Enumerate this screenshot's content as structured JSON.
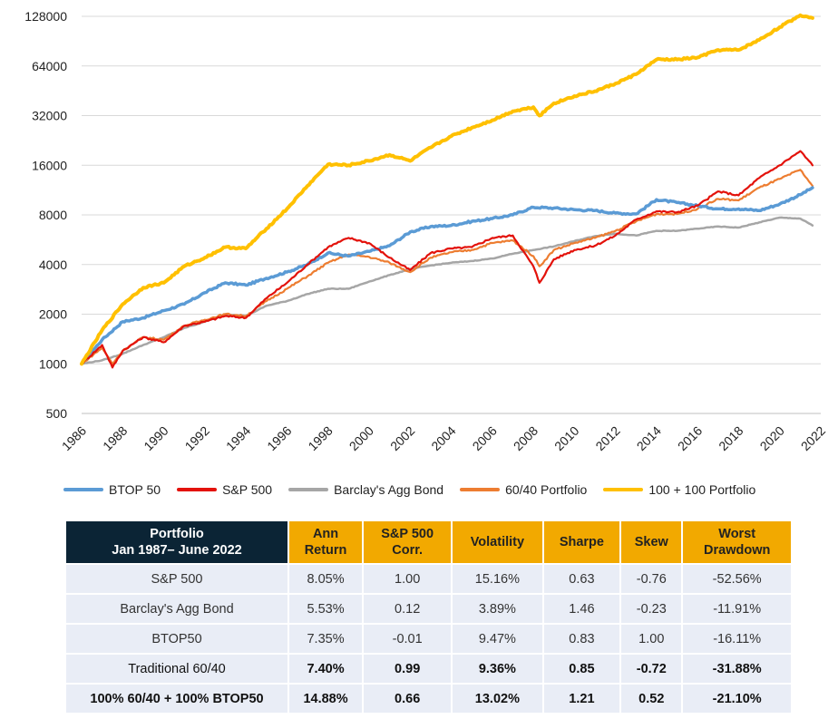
{
  "chart_data": {
    "type": "line",
    "y_scale": "log",
    "ylim": [
      500,
      140000
    ],
    "xlim": [
      1986,
      2022
    ],
    "y_ticks": [
      "128000",
      "64000",
      "32000",
      "16000",
      "8000",
      "4000",
      "2000",
      "1000",
      "500"
    ],
    "x_ticks": [
      "1986",
      "1988",
      "1990",
      "1992",
      "1994",
      "1996",
      "1998",
      "2000",
      "2002",
      "2004",
      "2006",
      "2008",
      "2010",
      "2012",
      "2014",
      "2016",
      "2018",
      "2020",
      "2022"
    ],
    "legend_position": "bottom",
    "grid": "horizontal",
    "series": [
      {
        "name": "BTOP 50",
        "color": "#5b9bd5",
        "x": [
          1986,
          1987,
          1988,
          1989,
          1990,
          1991,
          1992,
          1993,
          1994,
          1995,
          1996,
          1997,
          1998,
          1999,
          2000,
          2001,
          2002,
          2003,
          2004,
          2005,
          2006,
          2007,
          2008,
          2009,
          2010,
          2011,
          2012,
          2013,
          2014,
          2015,
          2016,
          2017,
          2018,
          2019,
          2020,
          2021,
          2021.6
        ],
        "y": [
          1000,
          1400,
          1800,
          1900,
          2100,
          2300,
          2700,
          3100,
          3000,
          3300,
          3600,
          4000,
          4700,
          4500,
          4800,
          5200,
          6300,
          6800,
          6900,
          7300,
          7600,
          8000,
          8900,
          8800,
          8600,
          8500,
          8200,
          8100,
          9900,
          9500,
          9100,
          8700,
          8700,
          8500,
          9300,
          10600,
          11700
        ]
      },
      {
        "name": "S&P 500",
        "color": "#e3120b",
        "x": [
          1986,
          1987,
          1987.5,
          1988,
          1989,
          1990,
          1991,
          1992,
          1993,
          1994,
          1995,
          1996,
          1997,
          1998,
          1999,
          2000,
          2001,
          2002,
          2003,
          2004,
          2005,
          2006,
          2007,
          2008,
          2008.3,
          2009,
          2010,
          2011,
          2012,
          2013,
          2014,
          2015,
          2016,
          2017,
          2018,
          2019,
          2020,
          2021,
          2021.6
        ],
        "y": [
          1000,
          1300,
          950,
          1200,
          1450,
          1350,
          1700,
          1800,
          1950,
          1900,
          2500,
          3100,
          4000,
          5100,
          5800,
          5400,
          4400,
          3700,
          4700,
          5000,
          5100,
          5800,
          6000,
          3900,
          3100,
          4300,
          4900,
          5200,
          6000,
          7500,
          8400,
          8300,
          9100,
          11100,
          10500,
          13400,
          16000,
          19500,
          16000
        ]
      },
      {
        "name": "Barclay's Agg Bond",
        "color": "#a6a6a6",
        "x": [
          1986,
          1987,
          1988,
          1989,
          1990,
          1991,
          1992,
          1993,
          1994,
          1995,
          1996,
          1997,
          1998,
          1999,
          2000,
          2001,
          2002,
          2003,
          2004,
          2005,
          2006,
          2007,
          2008,
          2009,
          2010,
          2011,
          2012,
          2013,
          2014,
          2015,
          2016,
          2017,
          2018,
          2019,
          2020,
          2021,
          2021.6
        ],
        "y": [
          1000,
          1050,
          1150,
          1300,
          1450,
          1650,
          1800,
          2000,
          1950,
          2250,
          2400,
          2650,
          2850,
          2850,
          3150,
          3450,
          3750,
          3950,
          4100,
          4200,
          4350,
          4650,
          4900,
          5150,
          5550,
          5950,
          6150,
          6000,
          6400,
          6400,
          6600,
          6800,
          6700,
          7200,
          7700,
          7600,
          6900
        ]
      },
      {
        "name": "60/40 Portfolio",
        "color": "#ed7d31",
        "x": [
          1986,
          1987,
          1987.5,
          1988,
          1989,
          1990,
          1991,
          1992,
          1993,
          1994,
          1995,
          1996,
          1997,
          1998,
          1999,
          2000,
          2001,
          2002,
          2003,
          2004,
          2005,
          2006,
          2007,
          2008,
          2008.3,
          2009,
          2010,
          2011,
          2012,
          2013,
          2014,
          2015,
          2016,
          2017,
          2018,
          2019,
          2020,
          2021,
          2021.6
        ],
        "y": [
          1000,
          1250,
          1000,
          1200,
          1450,
          1400,
          1700,
          1850,
          2000,
          1950,
          2400,
          2850,
          3400,
          4100,
          4600,
          4450,
          4100,
          3600,
          4400,
          4750,
          4900,
          5400,
          5600,
          4500,
          3900,
          4900,
          5400,
          5800,
          6400,
          7300,
          8100,
          8100,
          8700,
          10000,
          9800,
          11700,
          13200,
          15000,
          12000
        ]
      },
      {
        "name": "100 + 100 Portfolio",
        "color": "#ffc000",
        "x": [
          1986,
          1987,
          1988,
          1989,
          1990,
          1991,
          1992,
          1993,
          1994,
          1995,
          1996,
          1997,
          1998,
          1999,
          2000,
          2001,
          2002,
          2003,
          2004,
          2005,
          2006,
          2007,
          2008,
          2008.3,
          2009,
          2010,
          2011,
          2012,
          2013,
          2014,
          2015,
          2016,
          2017,
          2018,
          2019,
          2020,
          2021,
          2021.6
        ],
        "y": [
          1000,
          1600,
          2300,
          2900,
          3100,
          3900,
          4400,
          5100,
          5000,
          6600,
          8700,
          12000,
          16200,
          16000,
          17000,
          18500,
          17000,
          20500,
          24000,
          27000,
          30000,
          34000,
          36000,
          32000,
          38000,
          42000,
          45000,
          50000,
          57000,
          70000,
          70000,
          72000,
          80000,
          80000,
          92000,
          110000,
          130000,
          125000
        ]
      }
    ]
  },
  "table": {
    "headers": [
      "Portfolio\nJan 1987– June 2022",
      "Ann\nReturn",
      "S&P 500\nCorr.",
      "Volatility",
      "Sharpe",
      "Skew",
      "Worst\nDrawdown"
    ],
    "rows": [
      [
        "S&P 500",
        "8.05%",
        "1.00",
        "15.16%",
        "0.63",
        "-0.76",
        "-52.56%"
      ],
      [
        "Barclay's Agg Bond",
        "5.53%",
        "0.12",
        "3.89%",
        "1.46",
        "-0.23",
        "-11.91%"
      ],
      [
        "BTOP50",
        "7.35%",
        "-0.01",
        "9.47%",
        "0.83",
        "1.00",
        "-16.11%"
      ],
      [
        "Traditional 60/40",
        "7.40%",
        "0.99",
        "9.36%",
        "0.85",
        "-0.72",
        "-31.88%"
      ],
      [
        "100% 60/40 + 100% BTOP50",
        "14.88%",
        "0.66",
        "13.02%",
        "1.21",
        "0.52",
        "-21.10%"
      ]
    ],
    "bold_rows": [
      3,
      4
    ],
    "bold_first_cell_rows": [
      4
    ]
  }
}
